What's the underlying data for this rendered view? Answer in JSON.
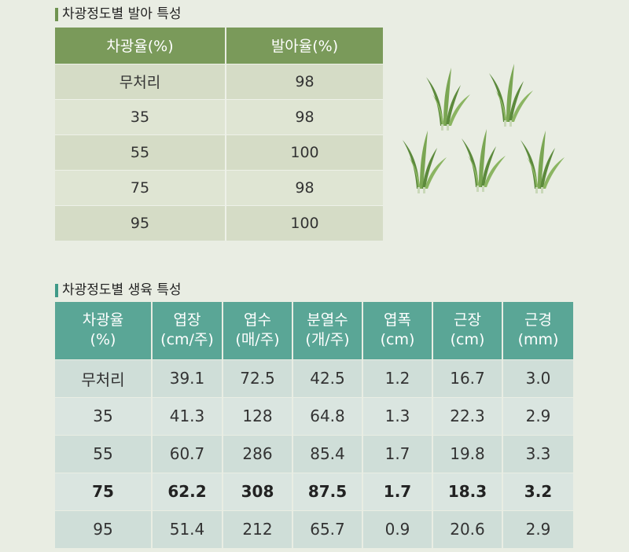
{
  "germination": {
    "title": "차광정도별 발아 특성",
    "headers": [
      "차광율(%)",
      "발아율(%)"
    ],
    "rows": [
      [
        "무처리",
        "98"
      ],
      [
        "35",
        "98"
      ],
      [
        "55",
        "100"
      ],
      [
        "75",
        "98"
      ],
      [
        "95",
        "100"
      ]
    ]
  },
  "growth": {
    "title": "차광정도별 생육 특성",
    "headers": [
      [
        "차광율",
        "(%)"
      ],
      [
        "엽장",
        "(cm/주)"
      ],
      [
        "엽수",
        "(매/주)"
      ],
      [
        "분열수",
        "(개/주)"
      ],
      [
        "엽폭",
        "(cm)"
      ],
      [
        "근장",
        "(cm)"
      ],
      [
        "근경",
        "(mm)"
      ]
    ],
    "rows": [
      [
        "무처리",
        "39.1",
        "72.5",
        "42.5",
        "1.2",
        "16.7",
        "3.0"
      ],
      [
        "35",
        "41.3",
        "128",
        "64.8",
        "1.3",
        "22.3",
        "2.9"
      ],
      [
        "55",
        "60.7",
        "286",
        "85.4",
        "1.7",
        "19.8",
        "3.3"
      ],
      [
        "75",
        "62.2",
        "308",
        "87.5",
        "1.7",
        "18.3",
        "3.2"
      ],
      [
        "95",
        "51.4",
        "212",
        "65.7",
        "0.9",
        "20.6",
        "2.9"
      ]
    ],
    "highlight_row": 3
  },
  "illustration": {
    "icon": "grass-seedlings-icon",
    "colors": {
      "blade_dark": "#5c8a3c",
      "blade_light": "#8bb562",
      "stem": "#c9d8b8"
    }
  }
}
